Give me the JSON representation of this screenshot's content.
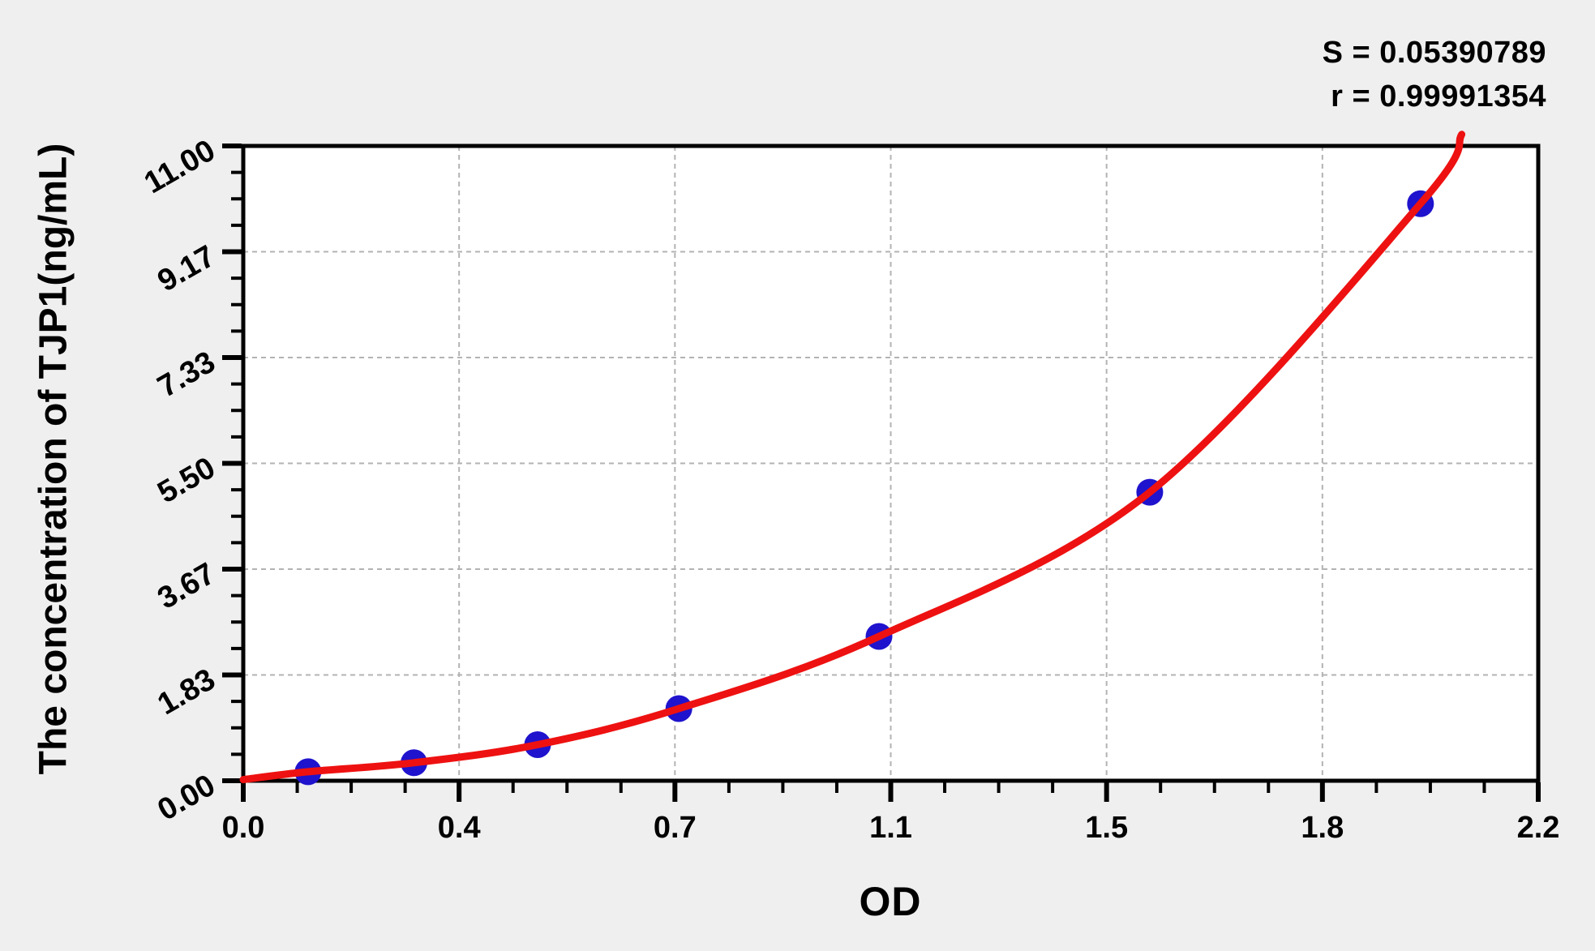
{
  "chart_data": {
    "type": "scatter",
    "title": "",
    "xlabel": "OD",
    "ylabel": "The concentration of TJP1(ng/mL)",
    "xlim": [
      0.0,
      2.2
    ],
    "ylim": [
      0.0,
      11.0
    ],
    "x_tick_labels": [
      "0.0",
      "0.4",
      "0.7",
      "1.1",
      "1.5",
      "1.8",
      "2.2"
    ],
    "y_tick_labels": [
      "0.00",
      "1.83",
      "3.67",
      "5.50",
      "7.33",
      "9.17",
      "11.00"
    ],
    "minor_divisions_per_major": 4,
    "grid": {
      "show": true,
      "style": "dashed",
      "color": "#b3b3b3"
    },
    "legend": {
      "show": false
    },
    "stats": [
      "S = 0.05390789",
      "r = 0.99991354"
    ],
    "series": [
      {
        "name": "standard-points",
        "type": "scatter",
        "color": "#1f13cd",
        "x": [
          0.11,
          0.29,
          0.5,
          0.74,
          1.08,
          1.54,
          2.0
        ],
        "y": [
          0.156,
          0.312,
          0.625,
          1.25,
          2.5,
          5.0,
          10.0
        ]
      },
      {
        "name": "fitted-curve",
        "type": "line",
        "color": "#ee1111",
        "x": [
          0.0,
          0.11,
          0.29,
          0.5,
          0.74,
          1.08,
          1.54,
          2.0,
          2.07
        ],
        "y": [
          0.02,
          0.156,
          0.312,
          0.625,
          1.25,
          2.5,
          5.0,
          10.0,
          11.2
        ]
      }
    ]
  },
  "colors": {
    "page_bg": "#efefef",
    "plot_bg": "#ffffff",
    "axis": "#000000",
    "grid": "#b3b3b3",
    "point": "#1f13cd",
    "curve": "#ee1111",
    "text": "#000000"
  }
}
